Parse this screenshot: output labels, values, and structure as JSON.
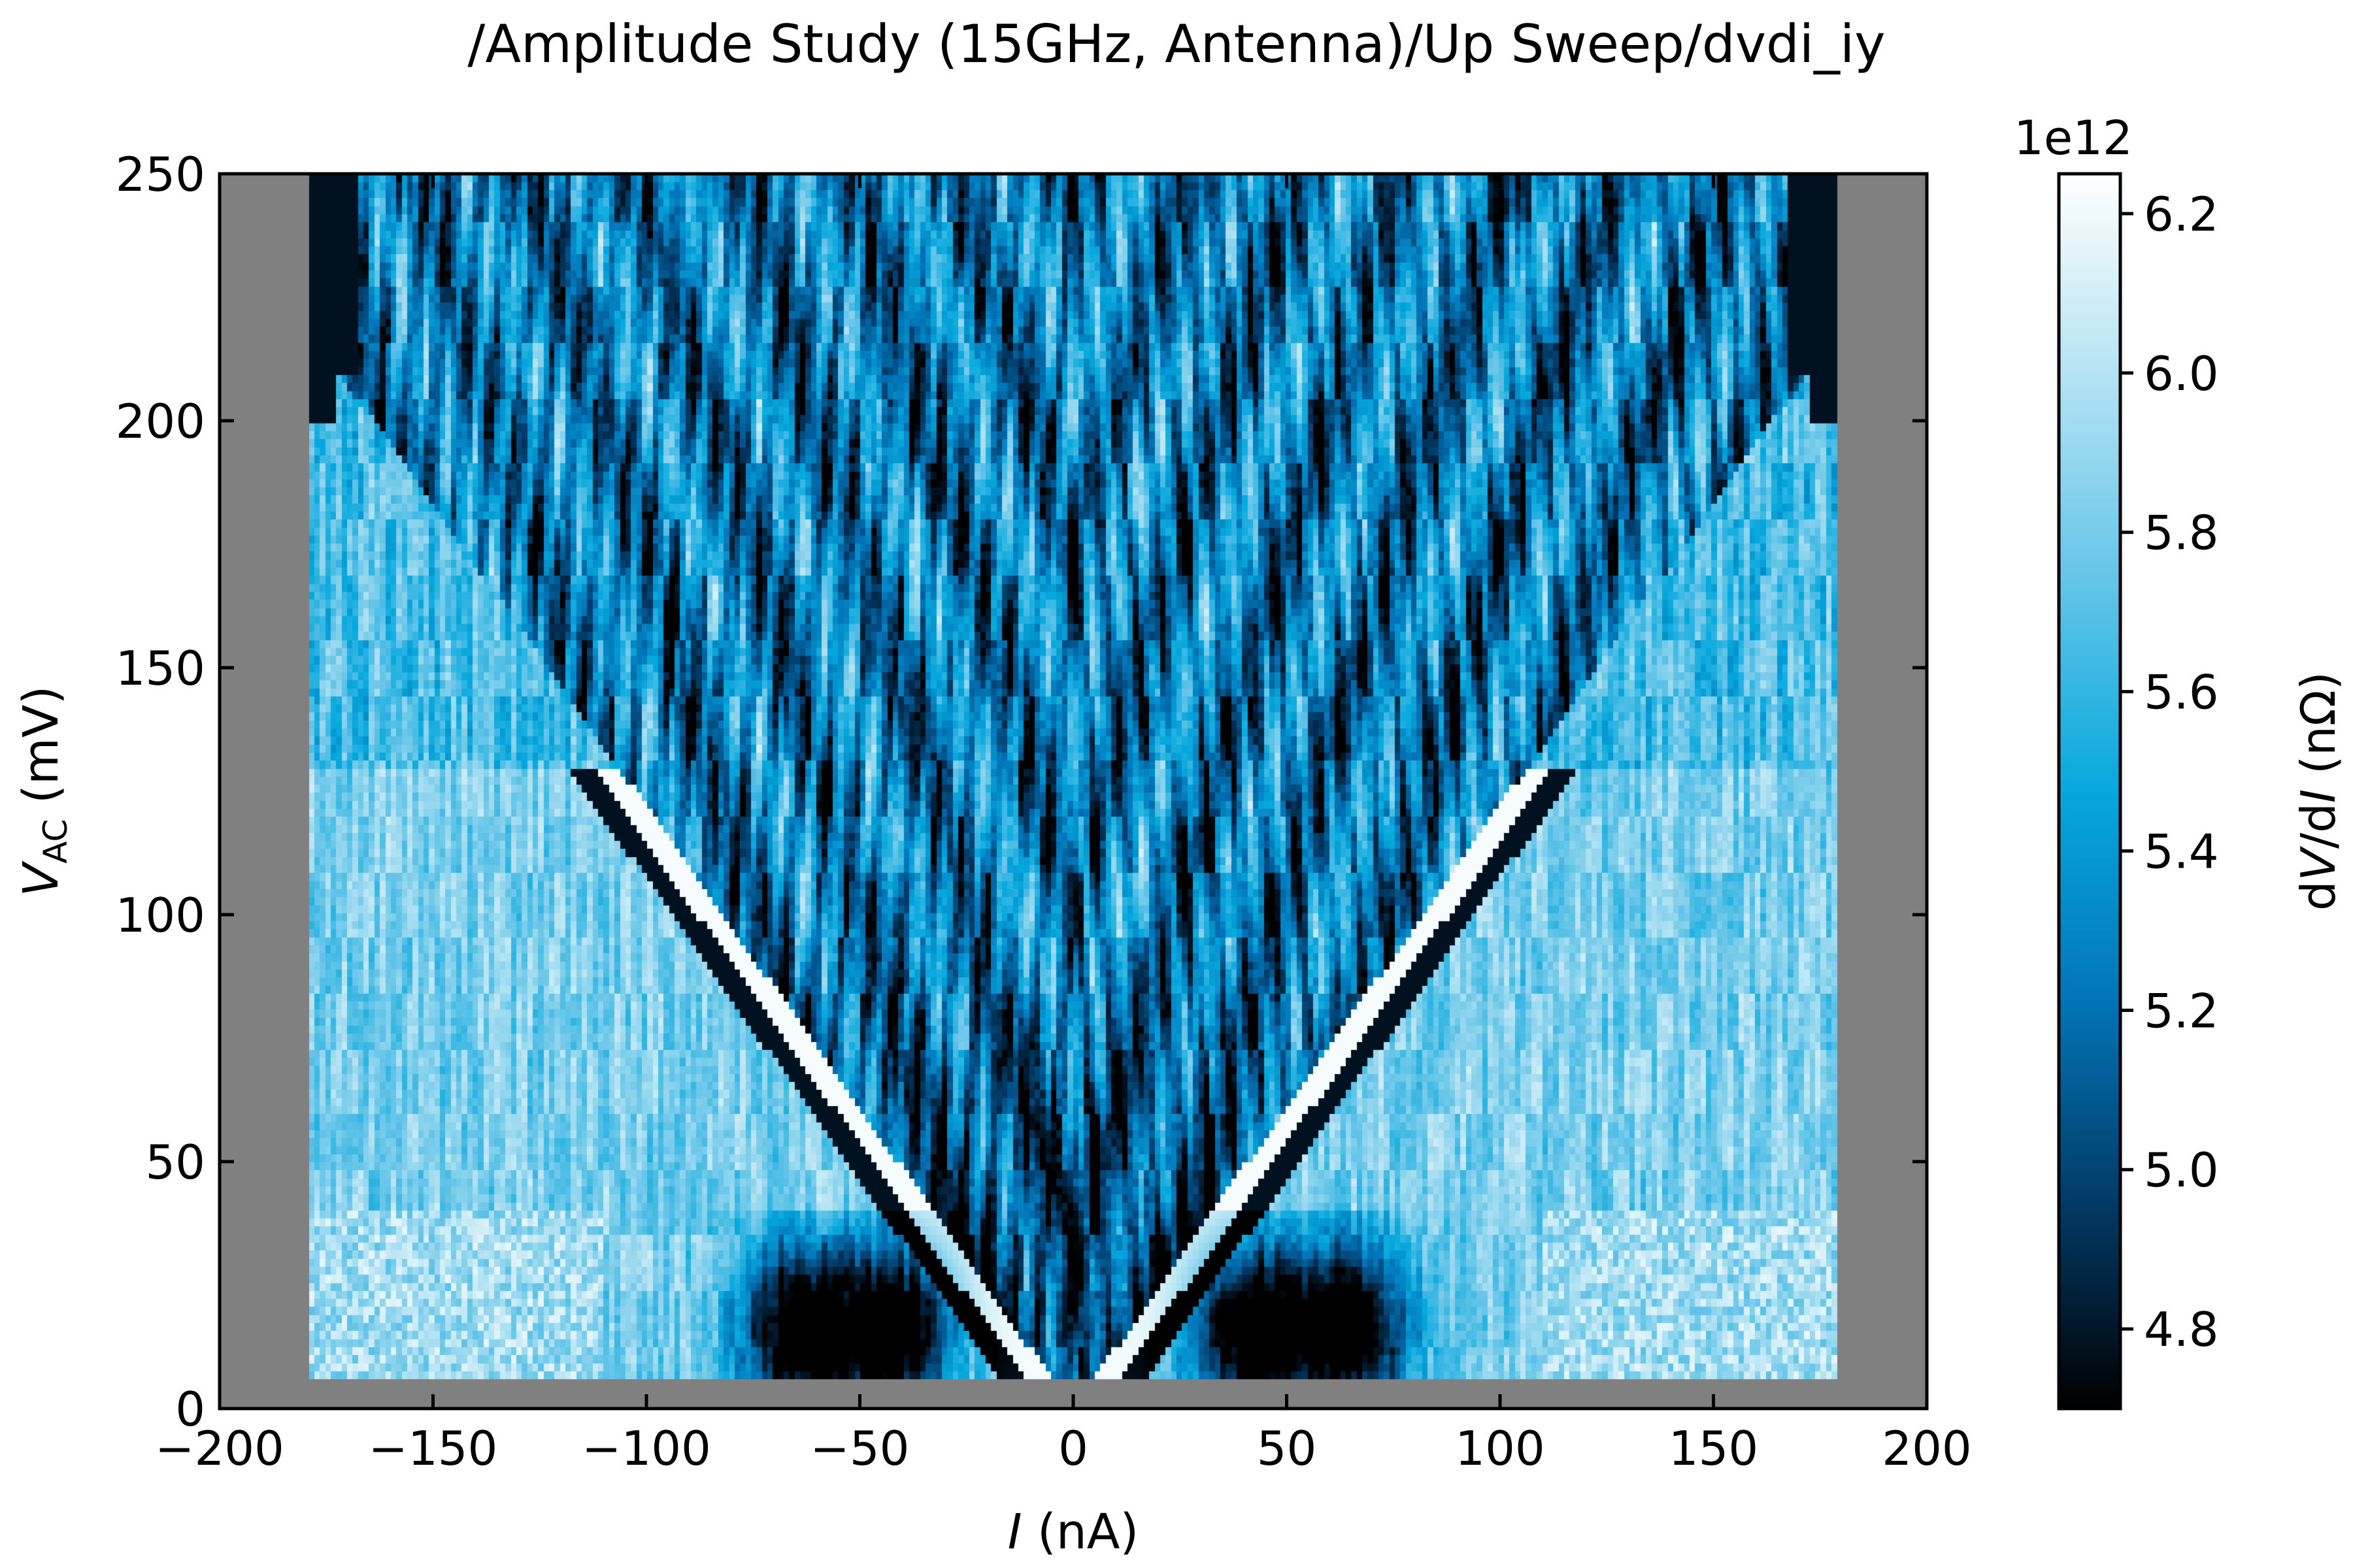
{
  "chart_data": {
    "type": "heatmap",
    "title": "/Amplitude Study (15GHz, Antenna)/Up Sweep/dvdi_iy",
    "xlabel": {
      "italic": "I",
      "rest": " (nA)"
    },
    "ylabel": {
      "italic": "V",
      "sub": "AC",
      "rest": " (mV)"
    },
    "xlim": [
      -200,
      200
    ],
    "ylim": [
      0,
      250
    ],
    "xticks": [
      -200,
      -150,
      -100,
      -50,
      0,
      50,
      100,
      150,
      200
    ],
    "xtick_labels": [
      "−200",
      "−150",
      "−100",
      "−50",
      "0",
      "50",
      "100",
      "150",
      "200"
    ],
    "yticks": [
      0,
      50,
      100,
      150,
      200,
      250
    ],
    "ytick_labels": [
      "0",
      "50",
      "100",
      "150",
      "200",
      "250"
    ],
    "data_extent": {
      "x": [
        -179,
        179
      ],
      "y": [
        6,
        250
      ]
    },
    "background_color": "#808080",
    "colormap": [
      "#000000",
      "#023a66",
      "#0275b8",
      "#06a8dd",
      "#62c4e8",
      "#b2e2f2",
      "#ffffff"
    ],
    "colorbar": {
      "label": {
        "pre": "d",
        "italic1": "V",
        "mid": "/d",
        "italic2": "I",
        "post": " (nΩ)"
      },
      "offset_label": "1e12",
      "range": [
        4.7,
        6.25
      ],
      "ticks": [
        4.8,
        5.0,
        5.2,
        5.4,
        5.6,
        5.8,
        6.0,
        6.2
      ],
      "tick_labels": [
        "4.8",
        "5.0",
        "5.2",
        "5.4",
        "5.6",
        "5.8",
        "6.0",
        "6.2"
      ]
    },
    "pattern": {
      "description": "Shapiro-step fan: bright/dark diagonal bands fanning out from I=0 at low V_AC, dark lobes near I=±(50–90) nA at V_AC<40 mV, noisy light-blue plateau at high V_AC",
      "fan_slope_mV_per_nA": 1.22,
      "low_v_lobe_centers_nA": [
        -65,
        -42,
        42,
        65
      ],
      "high_v_mean_value": 5.75
    }
  }
}
